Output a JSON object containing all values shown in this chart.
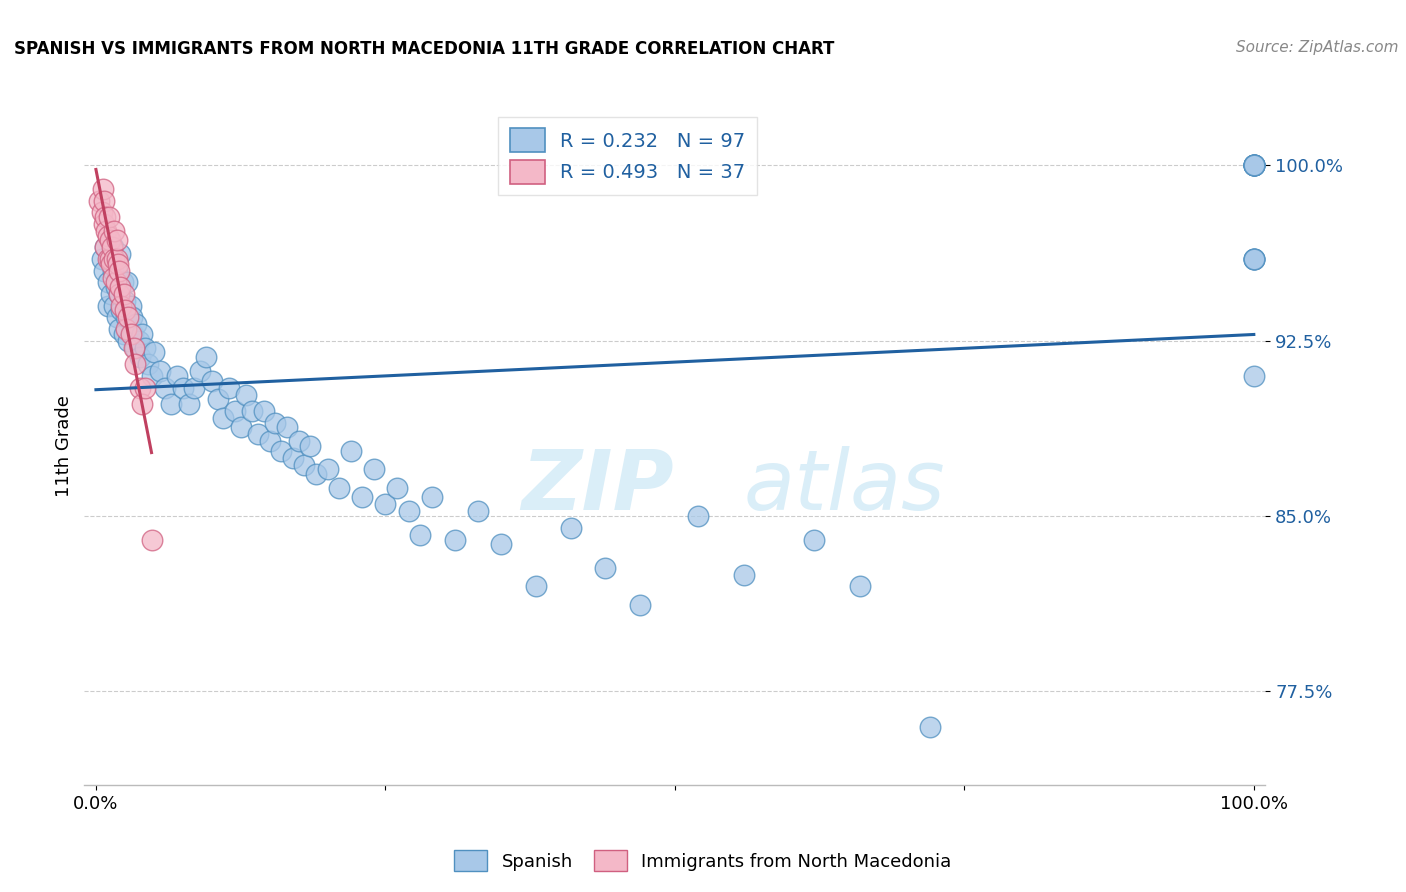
{
  "title": "SPANISH VS IMMIGRANTS FROM NORTH MACEDONIA 11TH GRADE CORRELATION CHART",
  "source_text": "Source: ZipAtlas.com",
  "ylabel": "11th Grade",
  "xlim": [
    -0.01,
    1.01
  ],
  "ylim": [
    0.735,
    1.025
  ],
  "yticks": [
    0.775,
    0.85,
    0.925,
    1.0
  ],
  "ytick_labels": [
    "77.5%",
    "85.0%",
    "92.5%",
    "100.0%"
  ],
  "blue_R": 0.232,
  "blue_N": 97,
  "pink_R": 0.493,
  "pink_N": 37,
  "blue_color": "#a8c8e8",
  "pink_color": "#f4b8c8",
  "blue_edge_color": "#5090c0",
  "pink_edge_color": "#d06080",
  "blue_line_color": "#2060a0",
  "pink_line_color": "#c04060",
  "legend_label_blue": "Spanish",
  "legend_label_pink": "Immigrants from North Macedonia",
  "background_color": "#ffffff",
  "watermark_color": "#daeef8",
  "blue_x": [
    0.005,
    0.007,
    0.008,
    0.01,
    0.01,
    0.012,
    0.013,
    0.015,
    0.015,
    0.016,
    0.017,
    0.018,
    0.018,
    0.02,
    0.02,
    0.021,
    0.022,
    0.023,
    0.024,
    0.025,
    0.026,
    0.027,
    0.028,
    0.03,
    0.031,
    0.032,
    0.034,
    0.035,
    0.037,
    0.038,
    0.04,
    0.042,
    0.045,
    0.048,
    0.05,
    0.055,
    0.06,
    0.065,
    0.07,
    0.075,
    0.08,
    0.085,
    0.09,
    0.095,
    0.1,
    0.105,
    0.11,
    0.115,
    0.12,
    0.125,
    0.13,
    0.135,
    0.14,
    0.145,
    0.15,
    0.155,
    0.16,
    0.165,
    0.17,
    0.175,
    0.18,
    0.185,
    0.19,
    0.2,
    0.21,
    0.22,
    0.23,
    0.24,
    0.25,
    0.26,
    0.27,
    0.28,
    0.29,
    0.31,
    0.33,
    0.35,
    0.38,
    0.41,
    0.44,
    0.47,
    0.52,
    0.56,
    0.62,
    0.66,
    0.72,
    1.0,
    1.0,
    1.0,
    1.0,
    1.0,
    1.0,
    1.0,
    1.0,
    1.0,
    1.0,
    1.0,
    1.0,
    1.0
  ],
  "blue_y": [
    0.96,
    0.955,
    0.965,
    0.94,
    0.95,
    0.96,
    0.945,
    0.955,
    0.965,
    0.94,
    0.948,
    0.935,
    0.955,
    0.93,
    0.945,
    0.962,
    0.938,
    0.95,
    0.928,
    0.942,
    0.935,
    0.95,
    0.925,
    0.94,
    0.935,
    0.928,
    0.922,
    0.932,
    0.925,
    0.918,
    0.928,
    0.922,
    0.915,
    0.91,
    0.92,
    0.912,
    0.905,
    0.898,
    0.91,
    0.905,
    0.898,
    0.905,
    0.912,
    0.918,
    0.908,
    0.9,
    0.892,
    0.905,
    0.895,
    0.888,
    0.902,
    0.895,
    0.885,
    0.895,
    0.882,
    0.89,
    0.878,
    0.888,
    0.875,
    0.882,
    0.872,
    0.88,
    0.868,
    0.87,
    0.862,
    0.878,
    0.858,
    0.87,
    0.855,
    0.862,
    0.852,
    0.842,
    0.858,
    0.84,
    0.852,
    0.838,
    0.82,
    0.845,
    0.828,
    0.812,
    0.85,
    0.825,
    0.84,
    0.82,
    0.76,
    1.0,
    1.0,
    1.0,
    1.0,
    1.0,
    1.0,
    1.0,
    1.0,
    0.96,
    0.96,
    0.96,
    0.96,
    0.91
  ],
  "pink_x": [
    0.003,
    0.005,
    0.006,
    0.007,
    0.007,
    0.008,
    0.008,
    0.009,
    0.01,
    0.01,
    0.011,
    0.012,
    0.012,
    0.013,
    0.014,
    0.015,
    0.016,
    0.016,
    0.017,
    0.018,
    0.018,
    0.019,
    0.02,
    0.02,
    0.021,
    0.022,
    0.024,
    0.025,
    0.026,
    0.028,
    0.03,
    0.033,
    0.034,
    0.038,
    0.04,
    0.042,
    0.048
  ],
  "pink_y": [
    0.985,
    0.98,
    0.99,
    0.975,
    0.985,
    0.965,
    0.978,
    0.972,
    0.96,
    0.97,
    0.978,
    0.96,
    0.968,
    0.958,
    0.965,
    0.952,
    0.96,
    0.972,
    0.95,
    0.96,
    0.968,
    0.958,
    0.945,
    0.955,
    0.948,
    0.94,
    0.945,
    0.938,
    0.93,
    0.935,
    0.928,
    0.922,
    0.915,
    0.905,
    0.898,
    0.905,
    0.84
  ]
}
